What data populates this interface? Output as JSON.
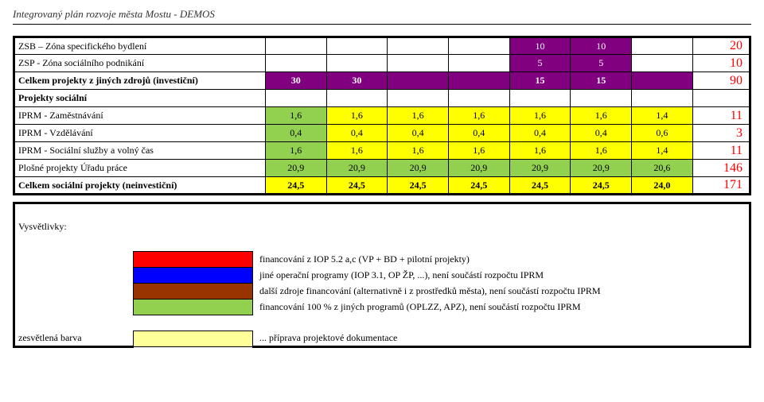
{
  "page_header": "Integrovaný plán rozvoje města Mostu - DEMOS",
  "col_widths": {
    "label": 280,
    "data": 68,
    "total": 64
  },
  "colors": {
    "purple": "#800080",
    "yellow": "#ffff00",
    "green": "#92d050",
    "red": "#ff0000",
    "blue": "#0000ff",
    "brown": "#993300",
    "ltyellow": "#ffff99",
    "white": "#ffffff",
    "black": "#000000",
    "total_text": "#ff0000"
  },
  "rows_invest": [
    {
      "label": "ZSB – Zóna specifického bydlení",
      "cells": [
        "",
        "",
        "",
        "",
        "10",
        "10",
        ""
      ],
      "cell_bg": [
        "",
        "",
        "",
        "",
        "#800080",
        "#800080",
        ""
      ],
      "cell_fg": [
        "",
        "",
        "",
        "",
        "#ffffff",
        "#ffffff",
        ""
      ],
      "total": "20"
    },
    {
      "label": "ZSP - Zóna sociálního podnikání",
      "cells": [
        "",
        "",
        "",
        "",
        "5",
        "5",
        ""
      ],
      "cell_bg": [
        "",
        "",
        "",
        "",
        "#800080",
        "#800080",
        ""
      ],
      "cell_fg": [
        "",
        "",
        "",
        "",
        "#ffffff",
        "#ffffff",
        ""
      ],
      "total": "10"
    },
    {
      "label": "Celkem projekty z jiných zdrojů (investiční)",
      "bold": true,
      "cells": [
        "30",
        "30",
        "",
        "",
        "15",
        "15",
        ""
      ],
      "cell_bg": [
        "#800080",
        "#800080",
        "#800080",
        "#800080",
        "#800080",
        "#800080",
        "#800080"
      ],
      "cell_fg": [
        "#ffffff",
        "#ffffff",
        "#ffffff",
        "#ffffff",
        "#ffffff",
        "#ffffff",
        "#ffffff"
      ],
      "total": "90"
    },
    {
      "label": "Projekty sociální",
      "bold": true,
      "cells": [
        "",
        "",
        "",
        "",
        "",
        "",
        ""
      ],
      "cell_bg": [
        "",
        "",
        "",
        "",
        "",
        "",
        ""
      ],
      "cell_fg": [
        "",
        "",
        "",
        "",
        "",
        "",
        ""
      ],
      "total": ""
    }
  ],
  "rows_social": [
    {
      "label": "IPRM - Zaměstnávání",
      "cells": [
        "1,6",
        "1,6",
        "1,6",
        "1,6",
        "1,6",
        "1,6",
        "1,4"
      ],
      "cell_bg": [
        "#92d050",
        "#ffff00",
        "#ffff00",
        "#ffff00",
        "#ffff00",
        "#ffff00",
        "#ffff00"
      ],
      "cell_fg": [
        "#000000",
        "#000000",
        "#000000",
        "#000000",
        "#000000",
        "#000000",
        "#000000"
      ],
      "total": "11"
    },
    {
      "label": "IPRM - Vzdělávání",
      "cells": [
        "0,4",
        "0,4",
        "0,4",
        "0,4",
        "0,4",
        "0,4",
        "0,6"
      ],
      "cell_bg": [
        "#92d050",
        "#ffff00",
        "#ffff00",
        "#ffff00",
        "#ffff00",
        "#ffff00",
        "#ffff00"
      ],
      "cell_fg": [
        "#000000",
        "#000000",
        "#000000",
        "#000000",
        "#000000",
        "#000000",
        "#000000"
      ],
      "total": "3"
    },
    {
      "label": "IPRM - Sociální služby a volný čas",
      "cells": [
        "1,6",
        "1,6",
        "1,6",
        "1,6",
        "1,6",
        "1,6",
        "1,4"
      ],
      "cell_bg": [
        "#92d050",
        "#ffff00",
        "#ffff00",
        "#ffff00",
        "#ffff00",
        "#ffff00",
        "#ffff00"
      ],
      "cell_fg": [
        "#000000",
        "#000000",
        "#000000",
        "#000000",
        "#000000",
        "#000000",
        "#000000"
      ],
      "total": "11"
    },
    {
      "label": "Plošné projekty Úřadu práce",
      "cells": [
        "20,9",
        "20,9",
        "20,9",
        "20,9",
        "20,9",
        "20,9",
        "20,6"
      ],
      "cell_bg": [
        "#92d050",
        "#92d050",
        "#92d050",
        "#92d050",
        "#92d050",
        "#92d050",
        "#92d050"
      ],
      "cell_fg": [
        "#000000",
        "#000000",
        "#000000",
        "#000000",
        "#000000",
        "#000000",
        "#000000"
      ],
      "total": "146"
    },
    {
      "label": "Celkem sociální projekty (neinvestiční)",
      "bold": true,
      "cells": [
        "24,5",
        "24,5",
        "24,5",
        "24,5",
        "24,5",
        "24,5",
        "24,0"
      ],
      "cell_bg": [
        "#ffff00",
        "#ffff00",
        "#ffff00",
        "#ffff00",
        "#ffff00",
        "#ffff00",
        "#ffff00"
      ],
      "cell_fg": [
        "#000000",
        "#000000",
        "#000000",
        "#000000",
        "#000000",
        "#000000",
        "#000000"
      ],
      "total": "171"
    }
  ],
  "legend_title": "Vysvětlivky:",
  "legend": [
    {
      "color": "#ff0000",
      "text": "financování z IOP 5.2 a,c (VP + BD + pilotní projekty)"
    },
    {
      "color": "#0000ff",
      "text": "jiné operační programy (IOP 3.1, OP ŽP, ...), není součástí rozpočtu IPRM"
    },
    {
      "color": "#993300",
      "text": "další zdroje financování (alternativně i z prostředků města), není součástí rozpočtu IPRM"
    },
    {
      "color": "#92d050",
      "text": "financování 100 % z jiných programů (OPLZZ, APZ), není součástí rozpočtu IPRM"
    }
  ],
  "legend_footer": {
    "label": "zesvětlená barva",
    "color": "#ffff99",
    "text": "... příprava projektové dokumentace"
  }
}
